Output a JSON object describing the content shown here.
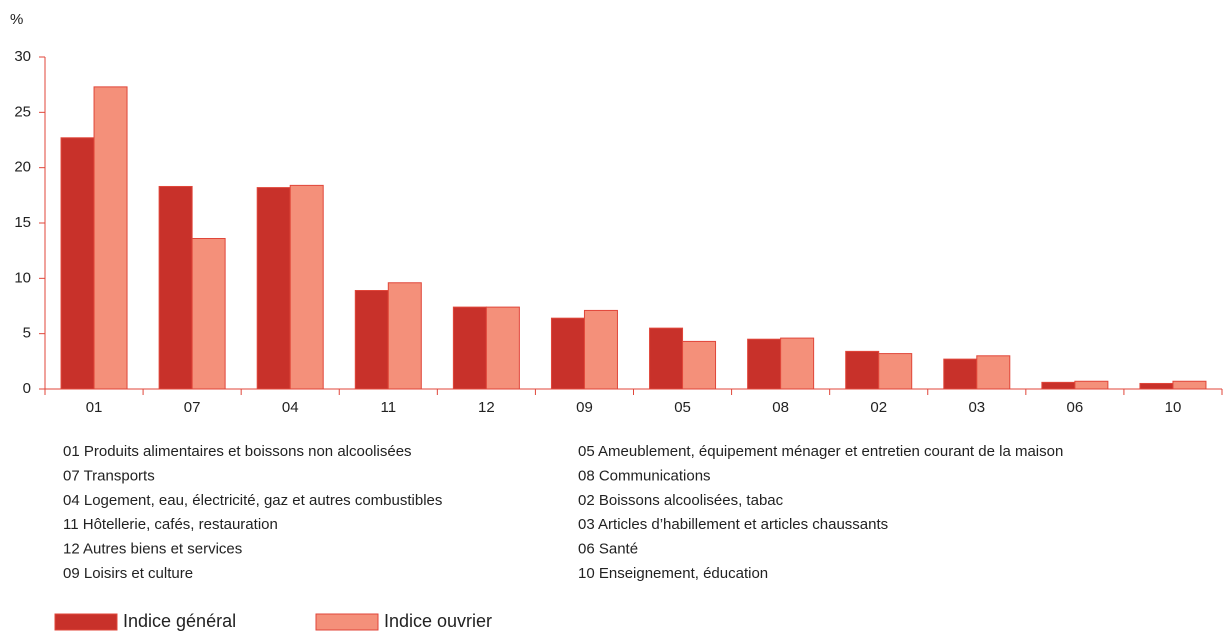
{
  "chart_data": {
    "type": "bar",
    "y_label": "%",
    "categories": [
      "01",
      "07",
      "04",
      "11",
      "12",
      "09",
      "05",
      "08",
      "02",
      "03",
      "06",
      "10"
    ],
    "series": [
      {
        "name": "Indice général",
        "color": "#c8312a",
        "values": [
          22.7,
          18.3,
          18.2,
          8.9,
          7.4,
          6.4,
          5.5,
          4.5,
          3.4,
          2.7,
          0.6,
          0.5
        ]
      },
      {
        "name": "Indice ouvrier",
        "color": "#f4907a",
        "values": [
          27.3,
          13.6,
          18.4,
          9.6,
          7.4,
          7.1,
          4.3,
          4.6,
          3.2,
          3.0,
          0.7,
          0.7
        ]
      }
    ],
    "ylim": [
      0,
      30
    ],
    "yticks": [
      0,
      5,
      10,
      15,
      20,
      25,
      30
    ],
    "descriptions": [
      "01 Produits alimentaires et boissons non alcoolisées",
      "07 Transports",
      "04 Logement, eau, électricité, gaz et autres combustibles",
      "11 Hôtellerie, cafés, restauration",
      "12 Autres biens et services",
      "09 Loisirs et culture",
      "05 Ameublement, équipement ménager et entretien courant de la maison",
      "08 Communications",
      "02 Boissons alcoolisées, tabac",
      "03 Articles d’habillement et articles chaussants",
      "06 Santé",
      "10 Enseignement, éducation"
    ]
  }
}
